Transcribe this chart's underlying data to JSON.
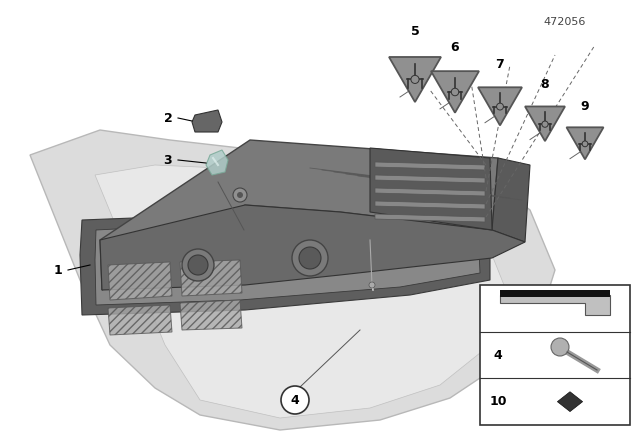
{
  "bg_color": "#ffffff",
  "diagram_number": "472056",
  "main_body_color": "#7a7a7a",
  "main_body_edge": "#444444",
  "tray_color": "#868686",
  "tray_inner_color": "#6a6a6a",
  "tray_rim_color": "#555555",
  "console_color": "#d4d4d4",
  "console_edge": "#b0b0b0",
  "tri_fill": "#909090",
  "tri_edge": "#555555",
  "label_color": "#000000",
  "box_edge": "#333333",
  "pad_color": "#333333",
  "screw_color": "#aaaaaa",
  "clip_color": "#cccccc"
}
